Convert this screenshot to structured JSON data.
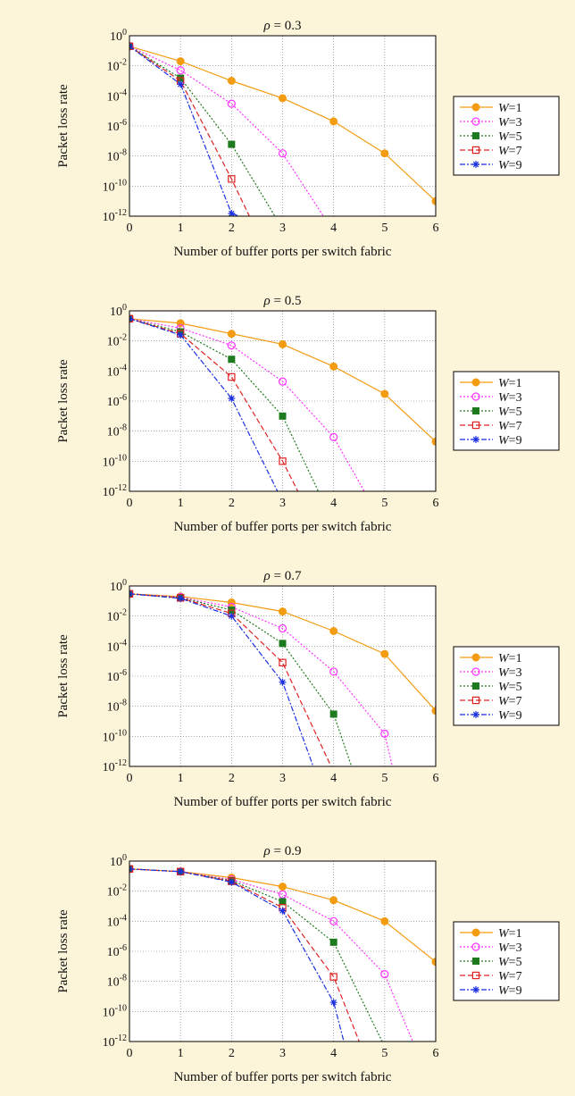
{
  "chart_data": [
    {
      "type": "line",
      "title_var": "ρ",
      "title_value": "= 0.3",
      "xlabel": "Number of buffer ports per switch fabric",
      "ylabel": "Packet loss rate",
      "xlim": [
        0,
        6
      ],
      "ylim": [
        "1e-12",
        "1"
      ],
      "yscale": "log",
      "grid": true,
      "legend_position": "right",
      "x_ticks": [
        "0",
        "1",
        "2",
        "3",
        "4",
        "5",
        "6"
      ],
      "y_ticks": [
        {
          "base": "10",
          "exp": "0"
        },
        {
          "base": "10",
          "exp": "-2"
        },
        {
          "base": "10",
          "exp": "-4"
        },
        {
          "base": "10",
          "exp": "-6"
        },
        {
          "base": "10",
          "exp": "-8"
        },
        {
          "base": "10",
          "exp": "-10"
        },
        {
          "base": "10",
          "exp": "-12"
        }
      ],
      "series": [
        {
          "name_var": "W",
          "name_value": "=1",
          "x": [
            0,
            1,
            2,
            3,
            4,
            5,
            6
          ],
          "y": [
            "2e-1",
            "2e-2",
            "1e-3",
            "7e-5",
            "2e-6",
            "1.5e-8",
            "1e-11"
          ]
        },
        {
          "name_var": "W",
          "name_value": "=3",
          "x": [
            0,
            1,
            2,
            3,
            3.8
          ],
          "y": [
            "2e-1",
            "5e-3",
            "3e-5",
            "1.5e-8",
            "1e-12"
          ]
        },
        {
          "name_var": "W",
          "name_value": "=5",
          "x": [
            0,
            1,
            2,
            2.85
          ],
          "y": [
            "2e-1",
            "1.5e-3",
            "6e-8",
            "1e-12"
          ]
        },
        {
          "name_var": "W",
          "name_value": "=7",
          "x": [
            0,
            1,
            2,
            2.35
          ],
          "y": [
            "2e-1",
            "1e-3",
            "3e-10",
            "1e-12"
          ]
        },
        {
          "name_var": "W",
          "name_value": "=9",
          "x": [
            0,
            1,
            2,
            2.15
          ],
          "y": [
            "2e-1",
            "6e-4",
            "1.5e-12",
            "1e-12"
          ]
        }
      ]
    },
    {
      "type": "line",
      "title_var": "ρ",
      "title_value": "= 0.5",
      "xlabel": "Number of buffer ports per switch fabric",
      "ylabel": "Packet loss rate",
      "xlim": [
        0,
        6
      ],
      "ylim": [
        "1e-12",
        "1"
      ],
      "yscale": "log",
      "grid": true,
      "legend_position": "right",
      "x_ticks": [
        "0",
        "1",
        "2",
        "3",
        "4",
        "5",
        "6"
      ],
      "y_ticks": [
        {
          "base": "10",
          "exp": "0"
        },
        {
          "base": "10",
          "exp": "-2"
        },
        {
          "base": "10",
          "exp": "-4"
        },
        {
          "base": "10",
          "exp": "-6"
        },
        {
          "base": "10",
          "exp": "-8"
        },
        {
          "base": "10",
          "exp": "-10"
        },
        {
          "base": "10",
          "exp": "-12"
        }
      ],
      "series": [
        {
          "name_var": "W",
          "name_value": "=1",
          "x": [
            0,
            1,
            2,
            3,
            4,
            5,
            6
          ],
          "y": [
            "3e-1",
            "1.5e-1",
            "3e-2",
            "6e-3",
            "2e-4",
            "3e-6",
            "2e-9"
          ]
        },
        {
          "name_var": "W",
          "name_value": "=3",
          "x": [
            0,
            1,
            2,
            3,
            4,
            4.6
          ],
          "y": [
            "3e-1",
            "7e-2",
            "5e-3",
            "2e-5",
            "4e-9",
            "1e-12"
          ]
        },
        {
          "name_var": "W",
          "name_value": "=5",
          "x": [
            0,
            1,
            2,
            3,
            3.7
          ],
          "y": [
            "3e-1",
            "4e-2",
            "6e-4",
            "1e-7",
            "1e-12"
          ]
        },
        {
          "name_var": "W",
          "name_value": "=7",
          "x": [
            0,
            1,
            2,
            3,
            3.3
          ],
          "y": [
            "3e-1",
            "3e-2",
            "4e-5",
            "1e-10",
            "1e-12"
          ]
        },
        {
          "name_var": "W",
          "name_value": "=9",
          "x": [
            0,
            1,
            2,
            2.9
          ],
          "y": [
            "3e-1",
            "2.5e-2",
            "1.5e-6",
            "1e-12"
          ]
        }
      ]
    },
    {
      "type": "line",
      "title_var": "ρ",
      "title_value": "= 0.7",
      "xlabel": "Number of buffer ports per switch fabric",
      "ylabel": "Packet loss rate",
      "xlim": [
        0,
        6
      ],
      "ylim": [
        "1e-12",
        "1"
      ],
      "yscale": "log",
      "grid": true,
      "legend_position": "right",
      "x_ticks": [
        "0",
        "1",
        "2",
        "3",
        "4",
        "5",
        "6"
      ],
      "y_ticks": [
        {
          "base": "10",
          "exp": "0"
        },
        {
          "base": "10",
          "exp": "-2"
        },
        {
          "base": "10",
          "exp": "-4"
        },
        {
          "base": "10",
          "exp": "-6"
        },
        {
          "base": "10",
          "exp": "-8"
        },
        {
          "base": "10",
          "exp": "-10"
        },
        {
          "base": "10",
          "exp": "-12"
        }
      ],
      "series": [
        {
          "name_var": "W",
          "name_value": "=1",
          "x": [
            0,
            1,
            2,
            3,
            4,
            5,
            6
          ],
          "y": [
            "3e-1",
            "2e-1",
            "8e-2",
            "2e-2",
            "1e-3",
            "3e-5",
            "5e-9"
          ]
        },
        {
          "name_var": "W",
          "name_value": "=3",
          "x": [
            0,
            1,
            2,
            3,
            4,
            5,
            5.15
          ],
          "y": [
            "3e-1",
            "1.8e-1",
            "4e-2",
            "1.5e-3",
            "2e-6",
            "1.5e-10",
            "1e-12"
          ]
        },
        {
          "name_var": "W",
          "name_value": "=5",
          "x": [
            0,
            1,
            2,
            3,
            4,
            4.35
          ],
          "y": [
            "3e-1",
            "1.7e-1",
            "2.5e-2",
            "1.5e-4",
            "3e-9",
            "1e-12"
          ]
        },
        {
          "name_var": "W",
          "name_value": "=7",
          "x": [
            0,
            1,
            2,
            3,
            3.95
          ],
          "y": [
            "3e-1",
            "1.6e-1",
            "1.5e-2",
            "8e-6",
            "1e-12"
          ]
        },
        {
          "name_var": "W",
          "name_value": "=9",
          "x": [
            0,
            1,
            2,
            3,
            3.6
          ],
          "y": [
            "3e-1",
            "1.5e-1",
            "1e-2",
            "4e-7",
            "1e-12"
          ]
        }
      ]
    },
    {
      "type": "line",
      "title_var": "ρ",
      "title_value": "= 0.9",
      "xlabel": "Number of buffer ports per switch fabric",
      "ylabel": "Packet loss rate",
      "xlim": [
        0,
        6
      ],
      "ylim": [
        "1e-12",
        "1"
      ],
      "yscale": "log",
      "grid": true,
      "legend_position": "right",
      "x_ticks": [
        "0",
        "1",
        "2",
        "3",
        "4",
        "5",
        "6"
      ],
      "y_ticks": [
        {
          "base": "10",
          "exp": "0"
        },
        {
          "base": "10",
          "exp": "-2"
        },
        {
          "base": "10",
          "exp": "-4"
        },
        {
          "base": "10",
          "exp": "-6"
        },
        {
          "base": "10",
          "exp": "-8"
        },
        {
          "base": "10",
          "exp": "-10"
        },
        {
          "base": "10",
          "exp": "-12"
        }
      ],
      "series": [
        {
          "name_var": "W",
          "name_value": "=1",
          "x": [
            0,
            1,
            2,
            3,
            4,
            5,
            6
          ],
          "y": [
            "3e-1",
            "2e-1",
            "8e-2",
            "2e-2",
            "2.5e-3",
            "1e-4",
            "2e-7"
          ]
        },
        {
          "name_var": "W",
          "name_value": "=3",
          "x": [
            0,
            1,
            2,
            3,
            4,
            5,
            5.55
          ],
          "y": [
            "3e-1",
            "2e-1",
            "6e-2",
            "6e-3",
            "1e-4",
            "3e-8",
            "1e-12"
          ]
        },
        {
          "name_var": "W",
          "name_value": "=5",
          "x": [
            0,
            1,
            2,
            3,
            4,
            4.95
          ],
          "y": [
            "3e-1",
            "2e-1",
            "5e-2",
            "2e-3",
            "4e-6",
            "1e-12"
          ]
        },
        {
          "name_var": "W",
          "name_value": "=7",
          "x": [
            0,
            1,
            2,
            3,
            4,
            4.5
          ],
          "y": [
            "3e-1",
            "2e-1",
            "4.5e-2",
            "8e-4",
            "2e-8",
            "1e-12"
          ]
        },
        {
          "name_var": "W",
          "name_value": "=9",
          "x": [
            0,
            1,
            2,
            3,
            4,
            4.2
          ],
          "y": [
            "3e-1",
            "2e-1",
            "4e-2",
            "5e-4",
            "4e-10",
            "1e-12"
          ]
        }
      ]
    }
  ],
  "colors": [
    "#f39c12",
    "#ff33ff",
    "#1e7a1e",
    "#e22222",
    "#1a2fe0"
  ],
  "markers": [
    "filled-circle",
    "open-circle",
    "filled-square",
    "open-square",
    "asterisk"
  ],
  "dashes": [
    "solid",
    "dotted",
    "dotted",
    "dashed",
    "dash-dot"
  ]
}
